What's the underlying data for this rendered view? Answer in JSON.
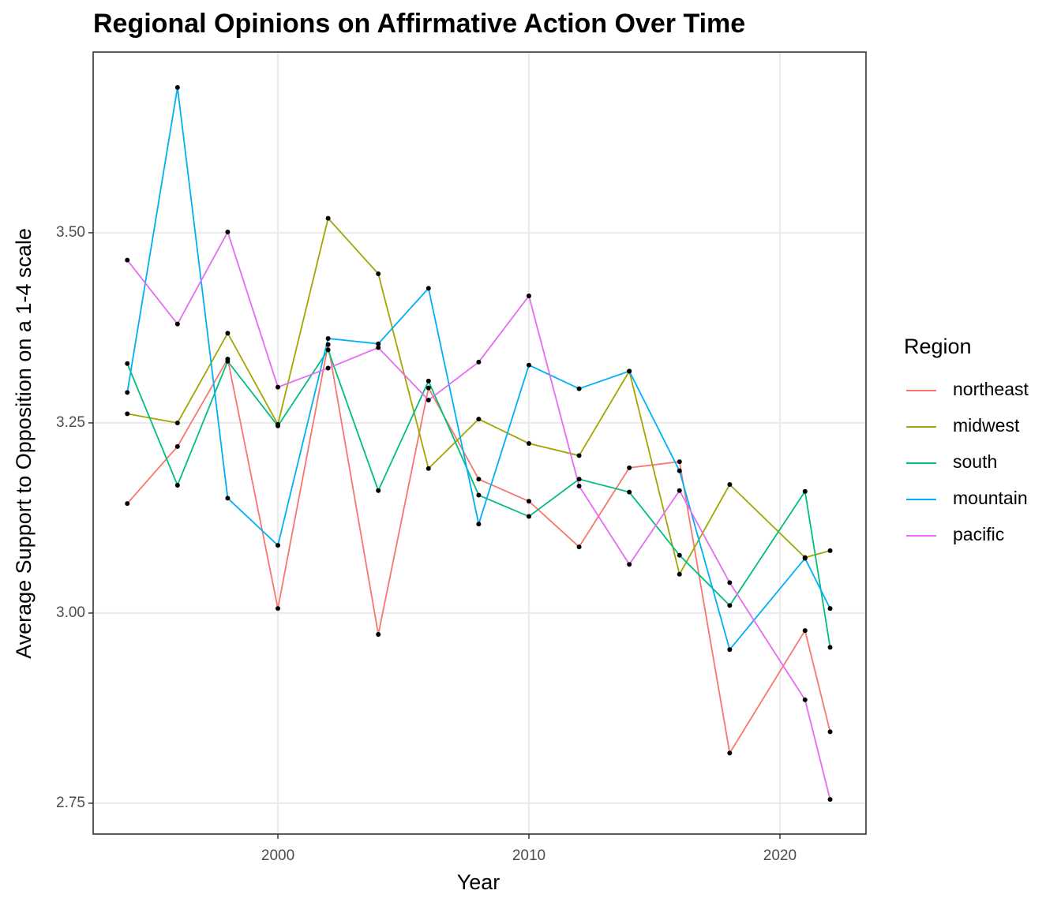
{
  "chart_data": {
    "type": "line",
    "title": "Regional Opinions on Affirmative Action Over Time",
    "x_label": "Year",
    "y_label": "Average Support to Opposition on a 1-4 scale",
    "legend_title": "Region",
    "legend_position": "right",
    "grid": true,
    "point_color": "#000000",
    "x": [
      1994,
      1996,
      1998,
      2000,
      2002,
      2004,
      2006,
      2008,
      2010,
      2012,
      2014,
      2016,
      2018,
      2021,
      2022
    ],
    "xlim": [
      1992.64,
      2023.43
    ],
    "xticks": [
      2000,
      2010,
      2020
    ],
    "ylim": [
      2.7095,
      3.7375
    ],
    "yticks": [
      2.75,
      {
        "value": 3,
        "label": "3.00"
      },
      3.25,
      {
        "value": 3.5,
        "label": "3.50"
      }
    ],
    "series": [
      {
        "name": "northeast",
        "color": "#F8766D",
        "values": [
          3.144,
          3.219,
          3.334,
          3.006,
          3.353,
          2.972,
          3.296,
          3.176,
          3.147,
          3.087,
          3.191,
          3.199,
          2.816,
          2.977,
          2.844
        ]
      },
      {
        "name": "midwest",
        "color": "#A3A500",
        "values": [
          3.262,
          3.25,
          3.368,
          3.248,
          3.519,
          3.446,
          3.19,
          3.255,
          3.223,
          3.207,
          3.318,
          3.051,
          3.169,
          3.073,
          3.082
        ]
      },
      {
        "name": "south",
        "color": "#00BF7D",
        "values": [
          3.328,
          3.168,
          3.331,
          3.246,
          3.346,
          3.161,
          3.305,
          3.155,
          3.127,
          3.176,
          3.159,
          3.076,
          3.01,
          3.16,
          2.955
        ]
      },
      {
        "name": "mountain",
        "color": "#00B0F6",
        "values": [
          3.29,
          3.691,
          3.151,
          3.089,
          3.361,
          3.354,
          3.427,
          3.117,
          3.326,
          3.295,
          3.318,
          3.187,
          2.952,
          3.072,
          3.006
        ]
      },
      {
        "name": "pacific",
        "color": "#E76BF3",
        "values": [
          3.464,
          3.38,
          3.501,
          3.297,
          3.322,
          3.349,
          3.28,
          3.33,
          3.417,
          3.167,
          3.064,
          3.161,
          3.04,
          2.886,
          2.755
        ]
      }
    ]
  }
}
